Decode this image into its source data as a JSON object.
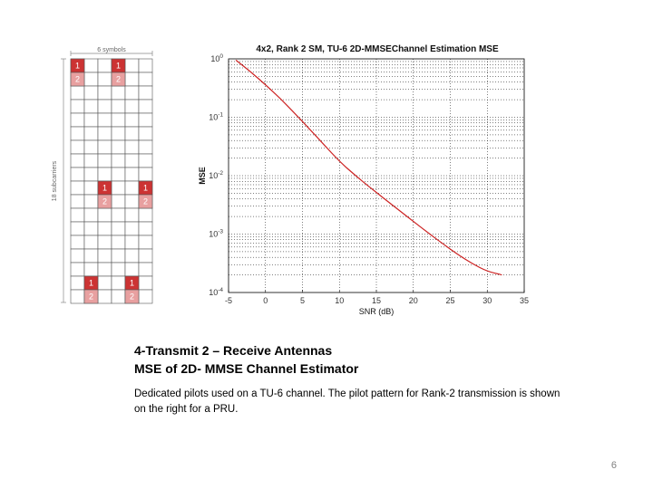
{
  "pilot_grid": {
    "top_label": "6 symbols",
    "side_label": "18 subcarriers",
    "rows": 18,
    "cols": 6,
    "pilot_color_1": "#cc3333",
    "pilot_color_2": "#e8a0a0",
    "pilots": [
      {
        "row": 0,
        "col": 0,
        "label": "1"
      },
      {
        "row": 0,
        "col": 3,
        "label": "1"
      },
      {
        "row": 1,
        "col": 0,
        "label": "2"
      },
      {
        "row": 1,
        "col": 3,
        "label": "2"
      },
      {
        "row": 9,
        "col": 2,
        "label": "1"
      },
      {
        "row": 9,
        "col": 5,
        "label": "1"
      },
      {
        "row": 10,
        "col": 2,
        "label": "2"
      },
      {
        "row": 10,
        "col": 5,
        "label": "2"
      },
      {
        "row": 16,
        "col": 1,
        "label": "1"
      },
      {
        "row": 16,
        "col": 4,
        "label": "1"
      },
      {
        "row": 17,
        "col": 1,
        "label": "2"
      },
      {
        "row": 17,
        "col": 4,
        "label": "2"
      }
    ]
  },
  "chart_data": {
    "type": "line",
    "title": "4x2, Rank 2 SM, TU-6 2D-MMSEChannel Estimation MSE",
    "xlabel": "SNR (dB)",
    "ylabel": "MSE",
    "xlim": [
      -5,
      35
    ],
    "ylim": [
      0.0001,
      1
    ],
    "y_scale": "log",
    "grid": true,
    "x_ticks": [
      "-5",
      "0",
      "5",
      "10",
      "15",
      "20",
      "25",
      "30",
      "35"
    ],
    "x_tick_values": [
      -5,
      0,
      5,
      10,
      15,
      20,
      25,
      30,
      35
    ],
    "y_tick_values": [
      1,
      0.1,
      0.01,
      0.001,
      0.0001
    ],
    "y_ticks_base": [
      "10",
      "10",
      "10",
      "10",
      "10"
    ],
    "y_ticks_exp": [
      "0",
      "-1",
      "-2",
      "-3",
      "-4"
    ],
    "series": [
      {
        "name": "",
        "color": "#cc2222",
        "x": [
          -4,
          -2,
          0,
          2,
          4,
          6,
          8,
          10,
          12,
          14,
          16,
          18,
          20,
          22,
          24,
          26,
          28,
          30,
          32
        ],
        "y": [
          0.95,
          0.6,
          0.36,
          0.21,
          0.115,
          0.062,
          0.033,
          0.0175,
          0.0105,
          0.0065,
          0.0041,
          0.0026,
          0.00165,
          0.00105,
          0.00068,
          0.00045,
          0.00031,
          0.00023,
          0.0002
        ]
      }
    ]
  },
  "caption": {
    "title_line1": "4-Transmit 2 – Receive Antennas",
    "title_line2": "MSE of  2D- MMSE Channel Estimator",
    "body": "Dedicated pilots used on a TU-6 channel.  The pilot pattern for Rank-2 transmission is shown on the right for a PRU."
  },
  "page_number": "6"
}
